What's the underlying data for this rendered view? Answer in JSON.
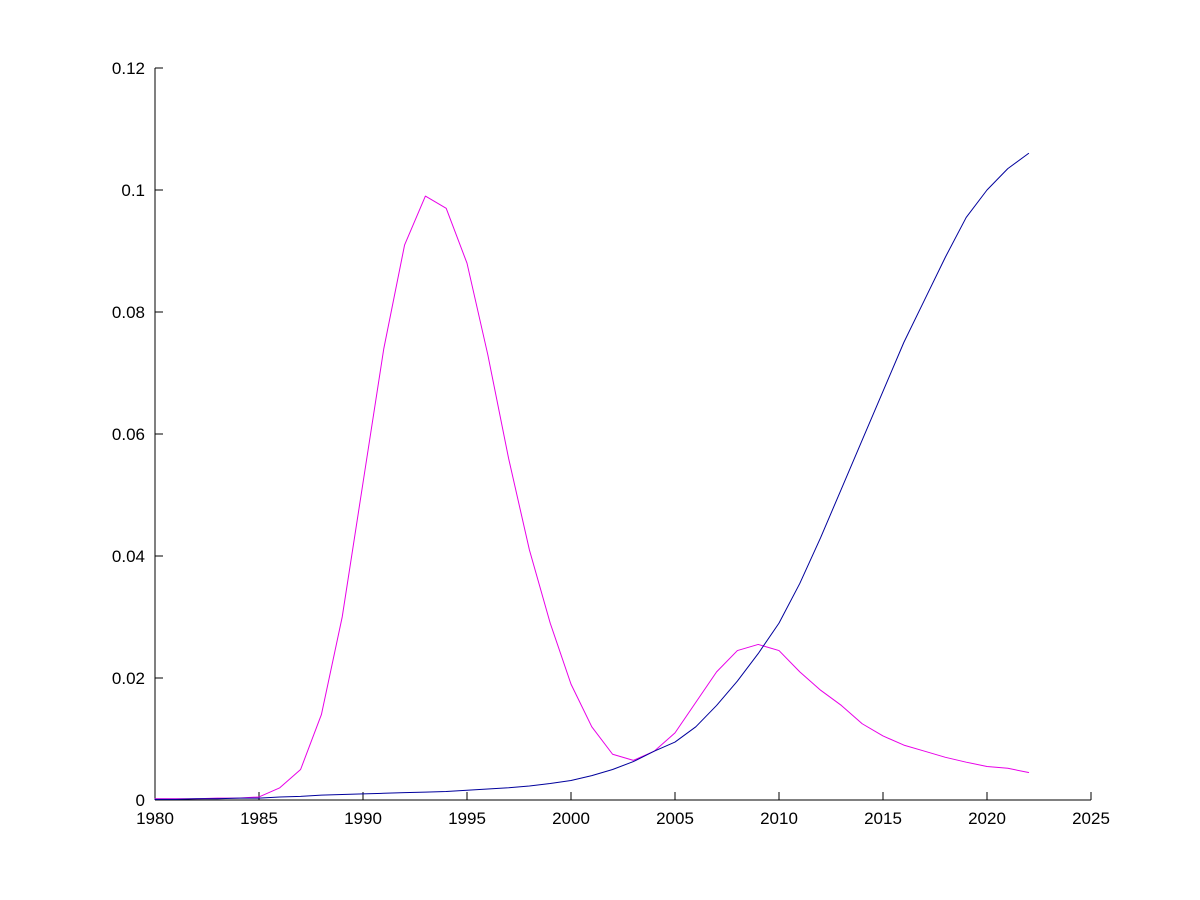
{
  "figure": {
    "background": "#ffffff",
    "axis_color": "#000000"
  },
  "chart_data": {
    "type": "line",
    "title": "",
    "xlabel": "",
    "ylabel": "",
    "grid": false,
    "legend": null,
    "box": false,
    "xlim": [
      1980,
      2025
    ],
    "ylim": [
      0,
      0.12
    ],
    "xticks": [
      1980,
      1985,
      1990,
      1995,
      2000,
      2005,
      2010,
      2015,
      2020,
      2025
    ],
    "xtick_labels": [
      "1980",
      "1985",
      "1990",
      "1995",
      "2000",
      "2005",
      "2010",
      "2015",
      "2020",
      "2025"
    ],
    "yticks": [
      0,
      0.02,
      0.04,
      0.06,
      0.08,
      0.1,
      0.12
    ],
    "ytick_labels": [
      "0",
      "0.02",
      "0.04",
      "0.06",
      "0.08",
      "0.1",
      "0.12"
    ],
    "x": [
      1980,
      1981,
      1982,
      1983,
      1984,
      1985,
      1986,
      1987,
      1988,
      1989,
      1990,
      1991,
      1992,
      1993,
      1994,
      1995,
      1996,
      1997,
      1998,
      1999,
      2000,
      2001,
      2002,
      2003,
      2004,
      2005,
      2006,
      2007,
      2008,
      2009,
      2010,
      2011,
      2012,
      2013,
      2014,
      2015,
      2016,
      2017,
      2018,
      2019,
      2020,
      2021,
      2022
    ],
    "series": [
      {
        "name": "magenta-series",
        "color": "#e800e8",
        "line_width": 1,
        "values": [
          0.0002,
          0.0002,
          0.0002,
          0.0003,
          0.0003,
          0.0005,
          0.002,
          0.005,
          0.014,
          0.03,
          0.052,
          0.074,
          0.091,
          0.099,
          0.097,
          0.088,
          0.073,
          0.056,
          0.041,
          0.029,
          0.019,
          0.012,
          0.0075,
          0.0065,
          0.008,
          0.011,
          0.016,
          0.021,
          0.0245,
          0.0255,
          0.0245,
          0.021,
          0.018,
          0.0155,
          0.0125,
          0.0105,
          0.009,
          0.008,
          0.007,
          0.0062,
          0.0055,
          0.0052,
          0.0045
        ]
      },
      {
        "name": "blue-series",
        "color": "#00009c",
        "line_width": 1,
        "values": [
          0.0001,
          0.0001,
          0.0002,
          0.0002,
          0.0003,
          0.0003,
          0.0005,
          0.0006,
          0.0008,
          0.0009,
          0.001,
          0.0011,
          0.0012,
          0.0013,
          0.0014,
          0.0016,
          0.0018,
          0.002,
          0.0023,
          0.0027,
          0.0032,
          0.004,
          0.005,
          0.0063,
          0.008,
          0.0095,
          0.012,
          0.0155,
          0.0195,
          0.024,
          0.029,
          0.0355,
          0.043,
          0.051,
          0.059,
          0.067,
          0.075,
          0.082,
          0.089,
          0.0955,
          0.1,
          0.1035,
          0.106
        ]
      }
    ]
  }
}
